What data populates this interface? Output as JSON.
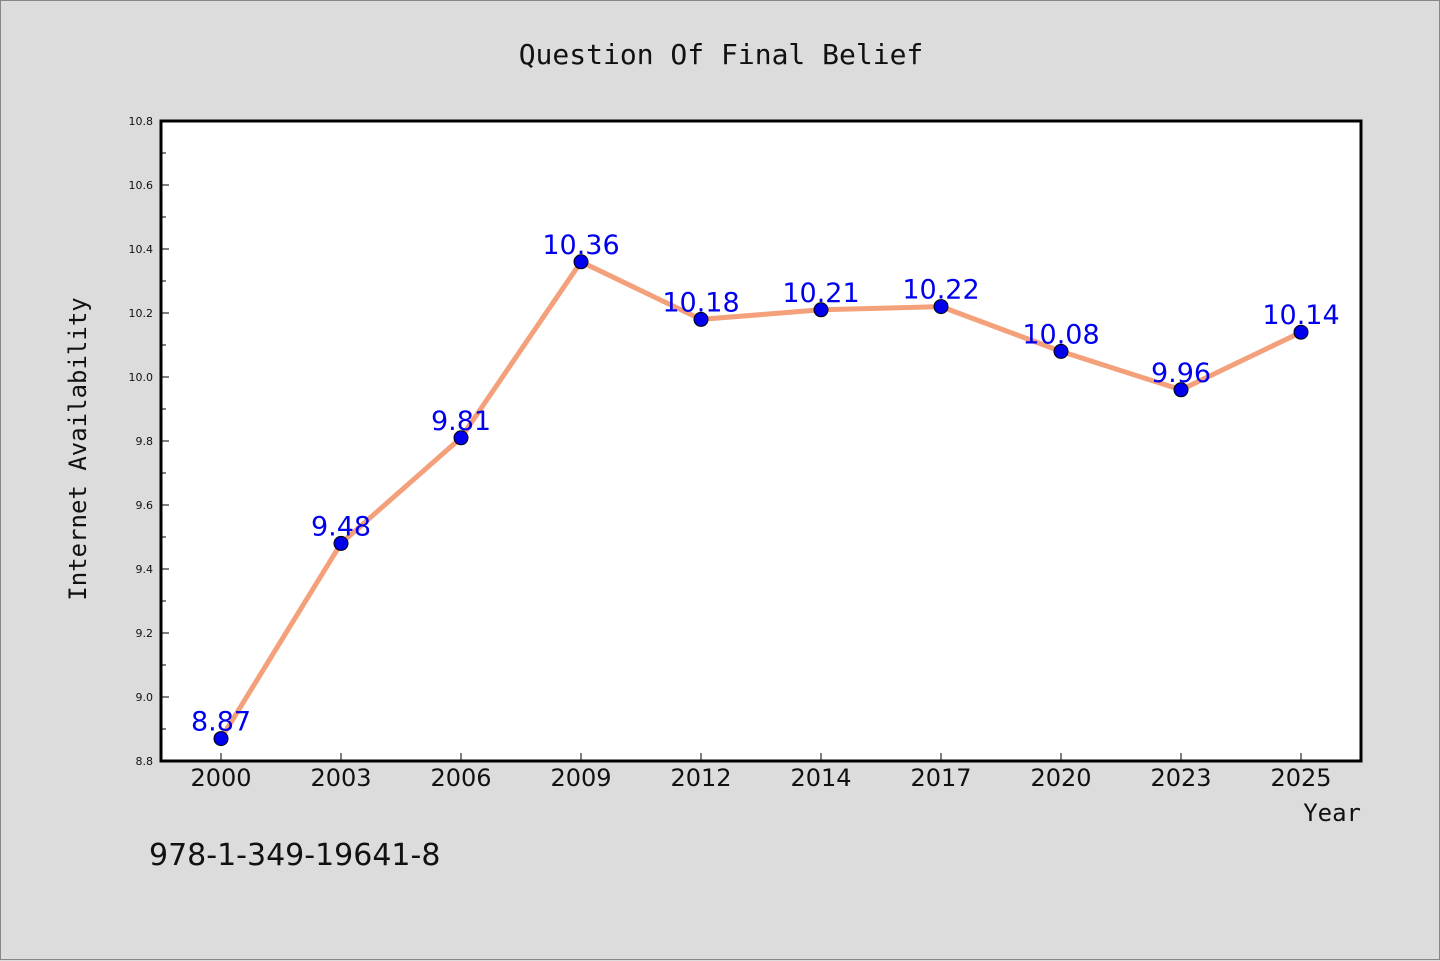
{
  "chart_data": {
    "type": "line",
    "title": "Question Of Final Belief",
    "xlabel": "Year",
    "ylabel": "Internet Availability",
    "categories": [
      "2000",
      "2003",
      "2006",
      "2009",
      "2012",
      "2014",
      "2017",
      "2020",
      "2023",
      "2025"
    ],
    "series": [
      {
        "values": [
          8.87,
          9.48,
          9.81,
          10.36,
          10.18,
          10.21,
          10.22,
          10.08,
          9.96,
          10.14
        ],
        "line_color": "#f4a07a",
        "marker_color": "#0000ee",
        "label_color": "#0000ee"
      }
    ],
    "data_labels": [
      "8.87",
      "9.48",
      "9.81",
      "10.36",
      "10.18",
      "10.21",
      "10.22",
      "10.08",
      "9.96",
      "10.14"
    ],
    "ylim": [
      8.8,
      10.8
    ],
    "yticks": [
      "8.8",
      "9.0",
      "9.2",
      "9.4",
      "9.6",
      "9.8",
      "10.0",
      "10.2",
      "10.4",
      "10.6",
      "10.8"
    ],
    "grid": false,
    "legend": "none"
  },
  "footer_text": "978-1-349-19641-8"
}
